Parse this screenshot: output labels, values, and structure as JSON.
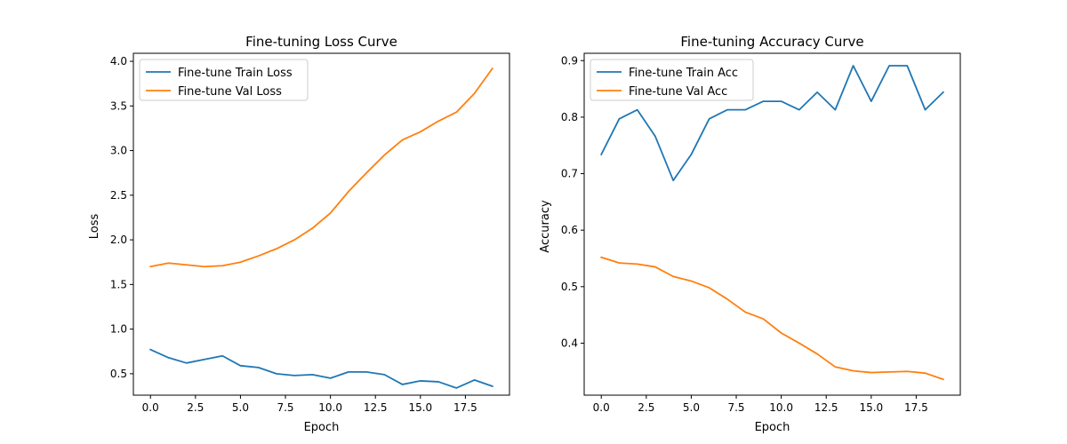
{
  "chart_data": [
    {
      "type": "line",
      "title": "Fine-tuning Loss Curve",
      "xlabel": "Epoch",
      "ylabel": "Loss",
      "xlim": [
        -0.95,
        19.95
      ],
      "ylim": [
        0.26,
        4.09
      ],
      "xticks": [
        0.0,
        2.5,
        5.0,
        7.5,
        10.0,
        12.5,
        15.0,
        17.5
      ],
      "xtick_labels": [
        "0.0",
        "2.5",
        "5.0",
        "7.5",
        "10.0",
        "12.5",
        "15.0",
        "17.5"
      ],
      "yticks": [
        0.5,
        1.0,
        1.5,
        2.0,
        2.5,
        3.0,
        3.5,
        4.0
      ],
      "ytick_labels": [
        "0.5",
        "1.0",
        "1.5",
        "2.0",
        "2.5",
        "3.0",
        "3.5",
        "4.0"
      ],
      "grid": false,
      "legend_position": "upper-left",
      "x": [
        0,
        1,
        2,
        3,
        4,
        5,
        6,
        7,
        8,
        9,
        10,
        11,
        12,
        13,
        14,
        15,
        16,
        17,
        18,
        19
      ],
      "series": [
        {
          "name": "Fine-tune Train Loss",
          "color": "#1f77b4",
          "values": [
            0.77,
            0.68,
            0.62,
            0.66,
            0.7,
            0.59,
            0.57,
            0.5,
            0.48,
            0.49,
            0.45,
            0.52,
            0.52,
            0.49,
            0.38,
            0.42,
            0.41,
            0.34,
            0.43,
            0.36
          ]
        },
        {
          "name": "Fine-tune Val Loss",
          "color": "#ff7f0e",
          "values": [
            1.7,
            1.74,
            1.72,
            1.7,
            1.71,
            1.75,
            1.82,
            1.9,
            2.0,
            2.13,
            2.3,
            2.54,
            2.75,
            2.95,
            3.12,
            3.21,
            3.33,
            3.43,
            3.64,
            3.92
          ]
        }
      ]
    },
    {
      "type": "line",
      "title": "Fine-tuning Accuracy Curve",
      "xlabel": "Epoch",
      "ylabel": "Accuracy",
      "xlim": [
        -0.95,
        19.95
      ],
      "ylim": [
        0.308,
        0.913
      ],
      "xticks": [
        0.0,
        2.5,
        5.0,
        7.5,
        10.0,
        12.5,
        15.0,
        17.5
      ],
      "xtick_labels": [
        "0.0",
        "2.5",
        "5.0",
        "7.5",
        "10.0",
        "12.5",
        "15.0",
        "17.5"
      ],
      "yticks": [
        0.4,
        0.5,
        0.6,
        0.7,
        0.8,
        0.9
      ],
      "ytick_labels": [
        "0.4",
        "0.5",
        "0.6",
        "0.7",
        "0.8",
        "0.9"
      ],
      "grid": false,
      "legend_position": "upper-left",
      "x": [
        0,
        1,
        2,
        3,
        4,
        5,
        6,
        7,
        8,
        9,
        10,
        11,
        12,
        13,
        14,
        15,
        16,
        17,
        18,
        19
      ],
      "series": [
        {
          "name": "Fine-tune Train Acc",
          "color": "#1f77b4",
          "values": [
            0.734,
            0.797,
            0.813,
            0.766,
            0.688,
            0.734,
            0.797,
            0.813,
            0.813,
            0.828,
            0.828,
            0.813,
            0.844,
            0.813,
            0.891,
            0.828,
            0.891,
            0.891,
            0.813,
            0.844
          ]
        },
        {
          "name": "Fine-tune Val Acc",
          "color": "#ff7f0e",
          "values": [
            0.552,
            0.542,
            0.54,
            0.535,
            0.518,
            0.51,
            0.498,
            0.478,
            0.455,
            0.443,
            0.418,
            0.4,
            0.381,
            0.358,
            0.351,
            0.348,
            0.349,
            0.35,
            0.347,
            0.336
          ]
        }
      ]
    }
  ]
}
